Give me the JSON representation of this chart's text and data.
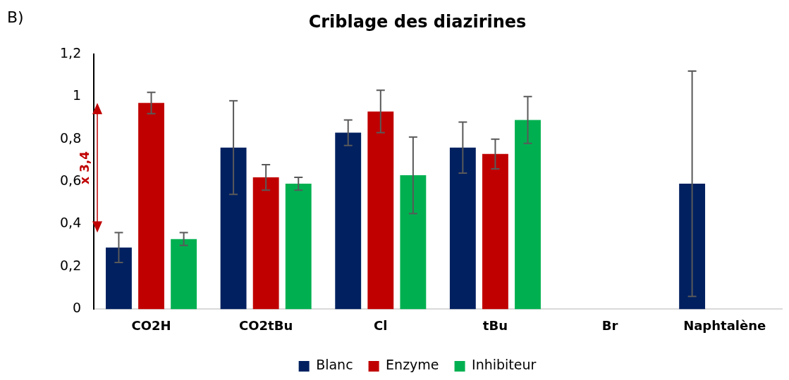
{
  "chart_data": {
    "type": "bar",
    "title": "Criblage des diazirines",
    "categories": [
      "CO2H",
      "CO2tBu",
      "Cl",
      "tBu",
      "Br",
      "Naphtalène"
    ],
    "series": [
      {
        "name": "Blanc",
        "color": "#002060",
        "values": [
          0.29,
          0.76,
          0.83,
          0.76,
          0,
          0.59
        ],
        "errors": [
          0.07,
          0.22,
          0.06,
          0.12,
          null,
          0.53
        ]
      },
      {
        "name": "Enzyme",
        "color": "#c00000",
        "values": [
          0.97,
          0.62,
          0.93,
          0.73,
          0,
          0
        ],
        "errors": [
          0.05,
          0.06,
          0.1,
          0.07,
          null,
          null
        ]
      },
      {
        "name": "Inhibiteur",
        "color": "#00b050",
        "values": [
          0.33,
          0.59,
          0.63,
          0.89,
          0,
          0
        ],
        "errors": [
          0.03,
          0.03,
          0.18,
          0.11,
          null,
          null
        ]
      }
    ],
    "ylim": [
      0,
      1.2
    ],
    "yticks": [
      0,
      {
        "value": 0.2,
        "label": "0,2"
      },
      {
        "value": 0.4,
        "label": "0,4"
      },
      {
        "value": 0.6,
        "label": "0,6"
      },
      {
        "value": 0.8,
        "label": "0,8"
      },
      1,
      {
        "value": 1.2,
        "label": "1,2"
      }
    ],
    "grid": false,
    "legend": "bottom",
    "annotations": [
      "B)",
      "x 3,4"
    ]
  }
}
